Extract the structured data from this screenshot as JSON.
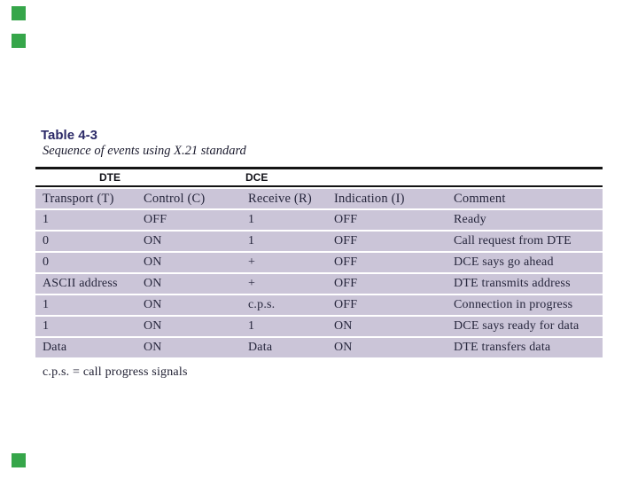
{
  "slide": {
    "colors": {
      "background": "#ffffff",
      "corner_square_green": "#36a64a",
      "table_row_fill": "#cbc5d8",
      "title_indigo": "#2c2a68",
      "body_text": "#26263c",
      "rule_black": "#141414"
    }
  },
  "table": {
    "label": "Table 4-3",
    "caption": "Sequence of events using X.21 standard",
    "group_headers": {
      "dte": "DTE",
      "dce": "DCE"
    },
    "columns": [
      "Transport (T)",
      "Control (C)",
      "Receive (R)",
      "Indication (I)",
      "Comment"
    ],
    "rows": [
      [
        "1",
        "OFF",
        "1",
        "OFF",
        "Ready"
      ],
      [
        "0",
        "ON",
        "1",
        "OFF",
        "Call request from DTE"
      ],
      [
        "0",
        "ON",
        "+",
        "OFF",
        "DCE says go ahead"
      ],
      [
        "ASCII address",
        "ON",
        "+",
        "OFF",
        "DTE transmits address"
      ],
      [
        "1",
        "ON",
        "c.p.s.",
        "OFF",
        "Connection in progress"
      ],
      [
        "1",
        "ON",
        "1",
        "ON",
        "DCE says ready for data"
      ],
      [
        "Data",
        "ON",
        "Data",
        "ON",
        "DTE transfers data"
      ]
    ],
    "footnote": "c.p.s. = call progress signals"
  }
}
